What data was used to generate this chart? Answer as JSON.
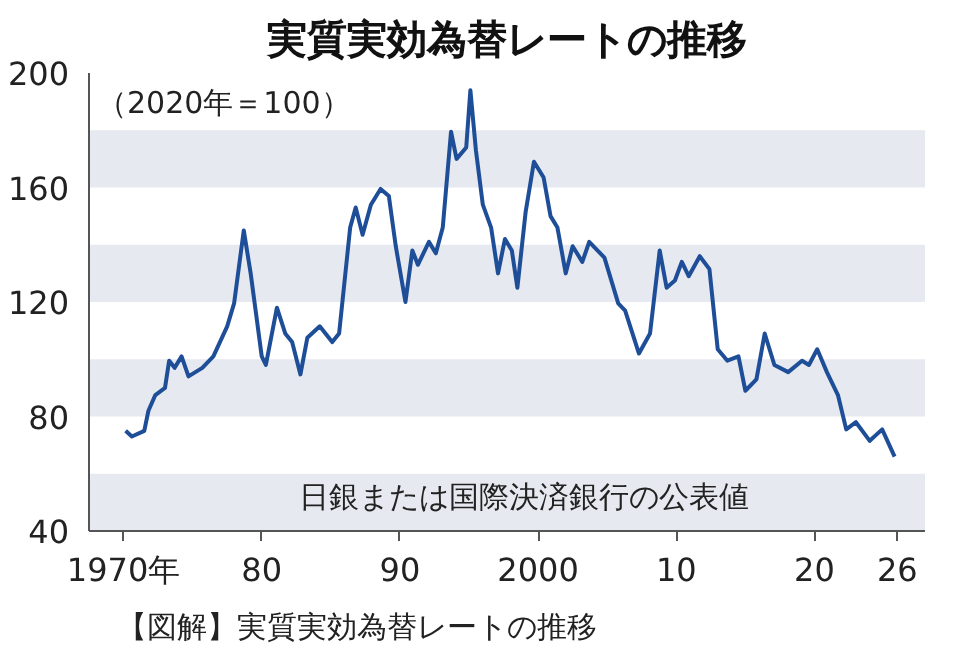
{
  "chart_data": {
    "type": "line",
    "title": "実質実効為替レートの推移",
    "subtitle": "（2020年＝100）",
    "annotations": [
      "日銀または国際決済銀行の公表値",
      "【図解】実質実効為替レートの推移"
    ],
    "series": [
      {
        "color": "#1f4e99",
        "x": [
          1970.15,
          1970.6,
          1971.5,
          1971.8,
          1972.3,
          1973.0,
          1973.3,
          1973.7,
          1974.2,
          1974.7,
          1975.7,
          1976.5,
          1977.5,
          1978.0,
          1978.7,
          1979.2,
          1980.0,
          1980.3,
          1981.1,
          1981.7,
          1982.2,
          1982.8,
          1983.3,
          1984.2,
          1985.1,
          1985.6,
          1986.4,
          1986.8,
          1987.3,
          1987.9,
          1988.6,
          1989.2,
          1989.7,
          1990.4,
          1990.9,
          1991.3,
          1992.1,
          1992.6,
          1993.1,
          1993.7,
          1994.1,
          1994.8,
          1995.1,
          1995.5,
          1996.0,
          1996.6,
          1997.1,
          1997.6,
          1998.1,
          1998.5,
          1999.1,
          1999.7,
          2000.4,
          2000.9,
          2001.4,
          2002.0,
          2002.5,
          2003.2,
          2003.7,
          2004.8,
          2005.8,
          2006.3,
          2007.3,
          2008.1,
          2008.8,
          2009.3,
          2009.9,
          2010.4,
          2010.9,
          2011.7,
          2012.4,
          2013.0,
          2013.7,
          2014.5,
          2015.0,
          2015.8,
          2016.4,
          2017.1,
          2018.1,
          2019.1,
          2019.6,
          2020.2,
          2020.9,
          2021.7,
          2022.3,
          2023.0,
          2024.0,
          2024.9,
          2025.8
        ],
        "values": [
          75,
          73,
          75,
          82,
          87.5,
          90,
          99.5,
          97,
          101,
          94,
          97,
          101,
          111.5,
          119.5,
          145,
          130,
          101,
          98,
          118,
          109,
          106,
          94.7,
          107.5,
          111.5,
          106,
          109,
          146,
          153,
          143.5,
          154,
          159.5,
          157,
          139.5,
          120,
          138,
          133,
          141,
          137,
          146,
          179.5,
          170,
          174,
          194,
          173,
          154,
          146,
          130,
          142,
          138,
          125,
          151.5,
          169,
          163.5,
          150,
          146,
          130,
          139.5,
          134,
          141,
          135.5,
          119.5,
          117,
          102,
          109,
          138,
          125,
          127.5,
          134,
          129,
          136,
          131.5,
          103.5,
          99.5,
          101,
          89,
          93,
          109,
          98,
          95.5,
          99.5,
          98,
          103.5,
          95.5,
          87.5,
          75.5,
          78,
          71.5,
          75.5,
          66
        ]
      }
    ],
    "xlim": [
      1967.5,
      2028
    ],
    "ylim": [
      40,
      200
    ],
    "xticks": [
      {
        "value": 1970,
        "label": "1970年"
      },
      {
        "value": 1980,
        "label": "80"
      },
      {
        "value": 1990,
        "label": "90"
      },
      2000,
      {
        "value": 2010,
        "label": "10"
      },
      {
        "value": 2020,
        "label": "20"
      },
      {
        "value": 2026,
        "label": "26"
      }
    ],
    "yticks": [
      40,
      80,
      120,
      160,
      200
    ],
    "bands": [
      {
        "axis": "y",
        "from": 40,
        "to": 60,
        "color": "#e6e9ef"
      },
      {
        "axis": "y",
        "from": 80,
        "to": 100,
        "color": "#e6e9ef"
      },
      {
        "axis": "y",
        "from": 120,
        "to": 140,
        "color": "#e6e9ef"
      },
      {
        "axis": "y",
        "from": 160,
        "to": 180,
        "color": "#e6e9ef"
      }
    ],
    "grid": false,
    "line_style": "solid",
    "marker": "none"
  }
}
